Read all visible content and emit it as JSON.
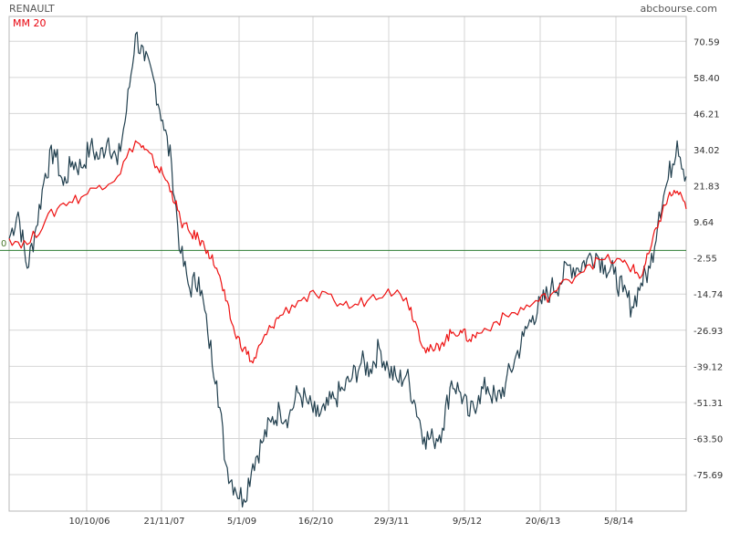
{
  "header": {
    "title": "RENAULT",
    "source": "abcbourse.com",
    "legend": "MM 20",
    "zero_label": "0"
  },
  "colors": {
    "price_line": "#22404f",
    "ma_line": "#ee1111",
    "zero_line": "#2e7d32",
    "grid": "#d6d6d6",
    "frame": "#b8b8b8"
  },
  "chart_data": {
    "type": "line",
    "title": "RENAULT",
    "xlabel": "",
    "ylabel": "",
    "x_ticks": [
      "10/10/06",
      "21/11/07",
      "5/1/09",
      "16/2/10",
      "29/3/11",
      "9/5/12",
      "20/6/13",
      "5/8/14"
    ],
    "y_ticks": [
      "70.59",
      "58.40",
      "46.21",
      "34.02",
      "21.83",
      "9.64",
      "-2.55",
      "-14.74",
      "-26.93",
      "-39.12",
      "-51.31",
      "-63.50",
      "-75.69"
    ],
    "ylim": [
      -88,
      79
    ],
    "reference_line": 0,
    "grid": true,
    "legend_position": "top-left",
    "series": [
      {
        "key": "price",
        "points": [
          [
            0,
            4
          ],
          [
            10,
            13
          ],
          [
            20,
            -6
          ],
          [
            30,
            8
          ],
          [
            40,
            26
          ],
          [
            50,
            34
          ],
          [
            60,
            22
          ],
          [
            70,
            30
          ],
          [
            80,
            28
          ],
          [
            90,
            35
          ],
          [
            100,
            31
          ],
          [
            110,
            38
          ],
          [
            120,
            29
          ],
          [
            130,
            47
          ],
          [
            140,
            73
          ],
          [
            150,
            64
          ],
          [
            160,
            58
          ],
          [
            170,
            44
          ],
          [
            180,
            29
          ],
          [
            190,
            -1
          ],
          [
            200,
            -13
          ],
          [
            210,
            -9
          ],
          [
            220,
            -28
          ],
          [
            230,
            -44
          ],
          [
            240,
            -72
          ],
          [
            250,
            -80
          ],
          [
            260,
            -84
          ],
          [
            270,
            -72
          ],
          [
            280,
            -65
          ],
          [
            290,
            -58
          ],
          [
            300,
            -54
          ],
          [
            310,
            -56
          ],
          [
            320,
            -48
          ],
          [
            330,
            -51
          ],
          [
            340,
            -56
          ],
          [
            350,
            -54
          ],
          [
            360,
            -50
          ],
          [
            370,
            -47
          ],
          [
            380,
            -43
          ],
          [
            390,
            -38
          ],
          [
            400,
            -40
          ],
          [
            410,
            -33
          ],
          [
            420,
            -40
          ],
          [
            430,
            -44
          ],
          [
            440,
            -42
          ],
          [
            450,
            -52
          ],
          [
            460,
            -63
          ],
          [
            470,
            -64
          ],
          [
            480,
            -60
          ],
          [
            490,
            -44
          ],
          [
            500,
            -48
          ],
          [
            510,
            -56
          ],
          [
            520,
            -49
          ],
          [
            530,
            -46
          ],
          [
            540,
            -51
          ],
          [
            550,
            -45
          ],
          [
            560,
            -37
          ],
          [
            570,
            -29
          ],
          [
            580,
            -22
          ],
          [
            590,
            -18
          ],
          [
            600,
            -13
          ],
          [
            610,
            -11
          ],
          [
            620,
            -5
          ],
          [
            630,
            -6
          ],
          [
            640,
            -3
          ],
          [
            650,
            -1
          ],
          [
            660,
            -5
          ],
          [
            670,
            -8
          ],
          [
            680,
            -14
          ],
          [
            690,
            -19
          ],
          [
            700,
            -11
          ],
          [
            710,
            -6
          ],
          [
            720,
            13
          ],
          [
            730,
            24
          ],
          [
            740,
            37
          ],
          [
            750,
            25
          ]
        ]
      },
      {
        "name": "MM 20",
        "key": "ma20",
        "points": [
          [
            0,
            4
          ],
          [
            20,
            2
          ],
          [
            40,
            10
          ],
          [
            60,
            16
          ],
          [
            80,
            18
          ],
          [
            100,
            22
          ],
          [
            120,
            25
          ],
          [
            140,
            37
          ],
          [
            150,
            34
          ],
          [
            160,
            30
          ],
          [
            170,
            26
          ],
          [
            180,
            20
          ],
          [
            190,
            10
          ],
          [
            200,
            6
          ],
          [
            210,
            4
          ],
          [
            220,
            0
          ],
          [
            230,
            -6
          ],
          [
            240,
            -17
          ],
          [
            250,
            -28
          ],
          [
            260,
            -33
          ],
          [
            270,
            -38
          ],
          [
            280,
            -31
          ],
          [
            290,
            -26
          ],
          [
            300,
            -22
          ],
          [
            320,
            -17
          ],
          [
            340,
            -15
          ],
          [
            360,
            -17
          ],
          [
            380,
            -19
          ],
          [
            400,
            -16
          ],
          [
            420,
            -13
          ],
          [
            440,
            -16
          ],
          [
            450,
            -24
          ],
          [
            460,
            -33
          ],
          [
            470,
            -34
          ],
          [
            480,
            -31
          ],
          [
            490,
            -28
          ],
          [
            500,
            -27
          ],
          [
            510,
            -30
          ],
          [
            520,
            -28
          ],
          [
            540,
            -24
          ],
          [
            560,
            -21
          ],
          [
            580,
            -18
          ],
          [
            600,
            -15
          ],
          [
            620,
            -10
          ],
          [
            640,
            -5
          ],
          [
            660,
            -3
          ],
          [
            680,
            -4
          ],
          [
            690,
            -6
          ],
          [
            700,
            -9
          ],
          [
            710,
            0
          ],
          [
            720,
            10
          ],
          [
            730,
            18
          ],
          [
            740,
            20
          ],
          [
            750,
            14
          ]
        ]
      }
    ]
  }
}
